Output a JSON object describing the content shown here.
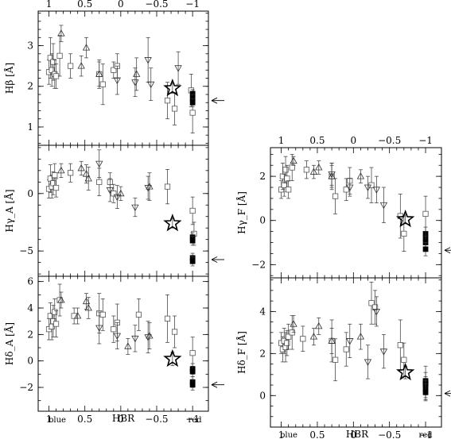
{
  "figure": {
    "xlabel": "HBR",
    "x_end_labels": {
      "left": "blue",
      "right": "red"
    },
    "top_ticks": [
      "1",
      "0.5",
      "0",
      "−0.5",
      "−1"
    ],
    "bottom_ticks": [
      "1",
      "0.5",
      "0",
      "−0.5",
      "−1"
    ]
  },
  "chart_data": [
    {
      "type": "scatter",
      "panel": "Hbeta",
      "ylabel": "Hβ [Å]",
      "xlim": [
        1.15,
        -1.22
      ],
      "ylim": [
        0.55,
        3.85
      ],
      "yticks": [
        1,
        2,
        3
      ],
      "arrow_y": 1.65,
      "squares": [
        {
          "x": 1.0,
          "y": 2.35,
          "err": 0.3
        },
        {
          "x": 0.98,
          "y": 2.7,
          "err": 0.5
        },
        {
          "x": 0.96,
          "y": 2.4,
          "err": 0.4
        },
        {
          "x": 0.94,
          "y": 2.6,
          "err": 0.45
        },
        {
          "x": 0.92,
          "y": 2.3,
          "err": 0.35
        },
        {
          "x": 0.9,
          "y": 2.25,
          "err": 0.3
        },
        {
          "x": 0.85,
          "y": 2.75,
          "err": 0.5
        },
        {
          "x": 0.7,
          "y": 2.5,
          "err": 0.3
        },
        {
          "x": 0.3,
          "y": 2.3,
          "err": 0.3
        },
        {
          "x": 0.25,
          "y": 2.05,
          "err": 0.5
        },
        {
          "x": 0.1,
          "y": 2.4,
          "err": 0.2
        },
        {
          "x": 0.05,
          "y": 2.5,
          "err": 0.3
        },
        {
          "x": -0.65,
          "y": 1.65,
          "err": 0.45
        },
        {
          "x": -0.75,
          "y": 1.45,
          "err": 0.4
        },
        {
          "x": -1.0,
          "y": 1.35,
          "err": 0.5
        },
        {
          "x": -0.98,
          "y": 1.9,
          "err": 0.4
        }
      ],
      "triangles_up": [
        {
          "x": 0.83,
          "y": 3.3,
          "err": 0.2
        },
        {
          "x": 0.55,
          "y": 2.5,
          "err": 0.25
        },
        {
          "x": 0.48,
          "y": 2.95,
          "err": 0.25
        },
        {
          "x": 0.3,
          "y": 2.3,
          "err": 0.35
        },
        {
          "x": -0.22,
          "y": 2.3,
          "err": 0.4
        }
      ],
      "triangles_down": [
        {
          "x": 0.05,
          "y": 2.15,
          "err": 0.35
        },
        {
          "x": -0.2,
          "y": 2.1,
          "err": 0.35
        },
        {
          "x": -0.38,
          "y": 2.65,
          "err": 0.55
        },
        {
          "x": -0.42,
          "y": 2.05,
          "err": 0.4
        },
        {
          "x": -0.8,
          "y": 2.45,
          "err": 0.4
        }
      ],
      "stars": [
        {
          "x": -0.72,
          "y": 1.95,
          "err": 0.12
        }
      ],
      "filled": [
        {
          "x": -1.0,
          "y": 1.82,
          "err": 0.1
        },
        {
          "x": -1.0,
          "y": 1.7,
          "err": 0.1
        },
        {
          "x": -1.0,
          "y": 1.6,
          "err": 0.1
        }
      ]
    },
    {
      "type": "scatter",
      "panel": "HgammaA",
      "ylabel": "Hγ_A [Å]",
      "xlim": [
        1.15,
        -1.22
      ],
      "ylim": [
        -7.2,
        4.2
      ],
      "yticks": [
        -5,
        0
      ],
      "arrow_y": -5.75,
      "squares": [
        {
          "x": 1.0,
          "y": 0.4,
          "err": 0.8
        },
        {
          "x": 0.98,
          "y": 1.3,
          "err": 1.2
        },
        {
          "x": 0.96,
          "y": 0.6,
          "err": 1.0
        },
        {
          "x": 0.94,
          "y": 0.9,
          "err": 1.0
        },
        {
          "x": 0.92,
          "y": 1.6,
          "err": 1.0
        },
        {
          "x": 0.9,
          "y": 0.5,
          "err": 0.8
        },
        {
          "x": 0.7,
          "y": 1.8,
          "err": 0.8
        },
        {
          "x": 0.3,
          "y": 1.0,
          "err": 1.2
        },
        {
          "x": 0.15,
          "y": 1.0,
          "err": 0.8
        },
        {
          "x": 0.1,
          "y": 0.0,
          "err": 0.8
        },
        {
          "x": -0.65,
          "y": 0.6,
          "err": 1.5
        },
        {
          "x": -1.0,
          "y": -1.5,
          "err": 1.2
        },
        {
          "x": -1.02,
          "y": -3.5,
          "err": 1.0
        }
      ],
      "triangles_up": [
        {
          "x": 0.83,
          "y": 2.0,
          "err": 0.6
        },
        {
          "x": 0.55,
          "y": 2.2,
          "err": 0.6
        },
        {
          "x": 0.48,
          "y": 1.7,
          "err": 0.8
        },
        {
          "x": 0.45,
          "y": 1.3,
          "err": 1.0
        },
        {
          "x": 0.0,
          "y": 0.0,
          "err": 0.6
        },
        {
          "x": -0.4,
          "y": 0.6,
          "err": 1.2
        }
      ],
      "triangles_down": [
        {
          "x": 0.3,
          "y": 2.6,
          "err": 1.2
        },
        {
          "x": 0.15,
          "y": 0.3,
          "err": 1.0
        },
        {
          "x": 0.05,
          "y": -0.3,
          "err": 1.0
        },
        {
          "x": -0.2,
          "y": -1.2,
          "err": 0.8
        },
        {
          "x": -0.38,
          "y": 0.5,
          "err": 1.0
        }
      ],
      "stars": [
        {
          "x": -0.72,
          "y": -2.6,
          "err": 0.4
        }
      ],
      "filled": [
        {
          "x": -1.0,
          "y": -3.8,
          "err": 0.4
        },
        {
          "x": -1.0,
          "y": -4.1,
          "err": 0.4
        },
        {
          "x": -1.0,
          "y": -5.6,
          "err": 0.4
        },
        {
          "x": -1.0,
          "y": -5.9,
          "err": 0.4
        }
      ]
    },
    {
      "type": "scatter",
      "panel": "HdeltaA",
      "ylabel": "Hδ_A [Å]",
      "xlim": [
        1.15,
        -1.22
      ],
      "ylim": [
        -3.8,
        6.4
      ],
      "yticks": [
        -2,
        0,
        2,
        4,
        6
      ],
      "arrow_y": -1.8,
      "squares": [
        {
          "x": 1.0,
          "y": 2.4,
          "err": 0.8
        },
        {
          "x": 0.98,
          "y": 3.4,
          "err": 1.0
        },
        {
          "x": 0.96,
          "y": 2.6,
          "err": 1.0
        },
        {
          "x": 0.94,
          "y": 3.0,
          "err": 1.2
        },
        {
          "x": 0.92,
          "y": 3.7,
          "err": 1.0
        },
        {
          "x": 0.9,
          "y": 2.8,
          "err": 1.0
        },
        {
          "x": 0.85,
          "y": 4.6,
          "err": 1.2
        },
        {
          "x": 0.65,
          "y": 3.4,
          "err": 0.6
        },
        {
          "x": 0.3,
          "y": 3.6,
          "err": 1.5
        },
        {
          "x": 0.25,
          "y": 3.5,
          "err": 1.2
        },
        {
          "x": 0.1,
          "y": 2.4,
          "err": 1.0
        },
        {
          "x": 0.05,
          "y": 2.9,
          "err": 1.4
        },
        {
          "x": -0.25,
          "y": 3.5,
          "err": 1.2
        },
        {
          "x": -0.65,
          "y": 3.2,
          "err": 1.8
        },
        {
          "x": -0.75,
          "y": 2.2,
          "err": 1.2
        },
        {
          "x": -1.0,
          "y": 0.6,
          "err": 1.2
        }
      ],
      "triangles_up": [
        {
          "x": 0.83,
          "y": 4.6,
          "err": 0.6
        },
        {
          "x": 0.6,
          "y": 3.4,
          "err": 0.6
        },
        {
          "x": 0.48,
          "y": 4.5,
          "err": 0.6
        },
        {
          "x": 0.45,
          "y": 4.0,
          "err": 0.8
        },
        {
          "x": -0.1,
          "y": 1.1,
          "err": 0.6
        },
        {
          "x": -0.4,
          "y": 1.9,
          "err": 1.0
        }
      ],
      "triangles_down": [
        {
          "x": 0.3,
          "y": 2.5,
          "err": 1.2
        },
        {
          "x": 0.05,
          "y": 1.9,
          "err": 1.0
        },
        {
          "x": -0.2,
          "y": 1.7,
          "err": 1.0
        },
        {
          "x": -0.38,
          "y": 1.8,
          "err": 1.2
        }
      ],
      "stars": [
        {
          "x": -0.72,
          "y": 0.15,
          "err": 0.5
        }
      ],
      "filled": [
        {
          "x": -1.0,
          "y": -0.6,
          "err": 0.4
        },
        {
          "x": -1.0,
          "y": -0.8,
          "err": 0.4
        },
        {
          "x": -1.0,
          "y": -1.6,
          "err": 0.4
        },
        {
          "x": -1.0,
          "y": -1.8,
          "err": 0.4
        }
      ]
    },
    {
      "type": "scatter",
      "panel": "HgammaF",
      "ylabel": "Hγ_F [Å]",
      "xlim": [
        1.15,
        -1.22
      ],
      "ylim": [
        -2.6,
        3.3
      ],
      "yticks": [
        -2,
        0,
        2
      ],
      "arrow_y": -1.35,
      "squares": [
        {
          "x": 1.0,
          "y": 1.4,
          "err": 0.4
        },
        {
          "x": 0.98,
          "y": 2.0,
          "err": 0.6
        },
        {
          "x": 0.96,
          "y": 1.6,
          "err": 0.5
        },
        {
          "x": 0.94,
          "y": 2.3,
          "err": 0.6
        },
        {
          "x": 0.92,
          "y": 1.9,
          "err": 0.6
        },
        {
          "x": 0.9,
          "y": 1.4,
          "err": 0.4
        },
        {
          "x": 0.85,
          "y": 2.4,
          "err": 0.6
        },
        {
          "x": 0.65,
          "y": 2.3,
          "err": 0.4
        },
        {
          "x": 0.3,
          "y": 2.0,
          "err": 0.6
        },
        {
          "x": 0.25,
          "y": 1.1,
          "err": 0.8
        },
        {
          "x": 0.1,
          "y": 1.4,
          "err": 0.5
        },
        {
          "x": 0.05,
          "y": 1.8,
          "err": 0.6
        },
        {
          "x": -0.25,
          "y": 1.6,
          "err": 0.8
        },
        {
          "x": -0.65,
          "y": 0.2,
          "err": 1.0
        },
        {
          "x": -0.7,
          "y": -0.6,
          "err": 0.8
        },
        {
          "x": -1.0,
          "y": 0.3,
          "err": 0.8
        }
      ],
      "triangles_up": [
        {
          "x": 0.83,
          "y": 2.7,
          "err": 0.2
        },
        {
          "x": 0.55,
          "y": 2.2,
          "err": 0.3
        },
        {
          "x": 0.48,
          "y": 2.4,
          "err": 0.3
        },
        {
          "x": 0.3,
          "y": 2.0,
          "err": 0.5
        },
        {
          "x": -0.1,
          "y": 2.0,
          "err": 0.3
        }
      ],
      "triangles_down": [
        {
          "x": 0.05,
          "y": 1.5,
          "err": 0.4
        },
        {
          "x": -0.2,
          "y": 1.5,
          "err": 0.5
        },
        {
          "x": -0.32,
          "y": 1.4,
          "err": 0.6
        },
        {
          "x": -0.42,
          "y": 0.7,
          "err": 0.8
        },
        {
          "x": 0.3,
          "y": 2.1,
          "err": 0.5
        }
      ],
      "stars": [
        {
          "x": -0.72,
          "y": 0.05,
          "err": 0.2
        }
      ],
      "filled": [
        {
          "x": -1.0,
          "y": -0.6,
          "err": 0.3
        },
        {
          "x": -1.0,
          "y": -0.8,
          "err": 0.3
        },
        {
          "x": -1.0,
          "y": -1.0,
          "err": 0.3
        },
        {
          "x": -1.0,
          "y": -1.3,
          "err": 0.3
        }
      ]
    },
    {
      "type": "scatter",
      "panel": "HdeltaF",
      "ylabel": "Hδ_F [Å]",
      "xlim": [
        1.15,
        -1.22
      ],
      "ylim": [
        -1.5,
        5.6
      ],
      "yticks": [
        0,
        2,
        4
      ],
      "arrow_y": 0.1,
      "squares": [
        {
          "x": 1.0,
          "y": 2.5,
          "err": 0.5
        },
        {
          "x": 0.98,
          "y": 2.2,
          "err": 0.6
        },
        {
          "x": 0.96,
          "y": 2.6,
          "err": 0.6
        },
        {
          "x": 0.94,
          "y": 2.3,
          "err": 0.7
        },
        {
          "x": 0.92,
          "y": 2.5,
          "err": 0.6
        },
        {
          "x": 0.9,
          "y": 2.8,
          "err": 0.6
        },
        {
          "x": 0.85,
          "y": 3.0,
          "err": 0.8
        },
        {
          "x": 0.7,
          "y": 2.7,
          "err": 0.6
        },
        {
          "x": 0.3,
          "y": 2.6,
          "err": 1.0
        },
        {
          "x": 0.25,
          "y": 1.7,
          "err": 1.0
        },
        {
          "x": 0.1,
          "y": 2.2,
          "err": 0.8
        },
        {
          "x": -0.25,
          "y": 4.4,
          "err": 1.0
        },
        {
          "x": -0.3,
          "y": 4.2,
          "err": 0.8
        },
        {
          "x": -0.65,
          "y": 2.4,
          "err": 1.2
        },
        {
          "x": -0.7,
          "y": 1.7,
          "err": 0.8
        },
        {
          "x": -1.0,
          "y": 0.6,
          "err": 0.8
        }
      ],
      "triangles_up": [
        {
          "x": 0.83,
          "y": 3.4,
          "err": 0.4
        },
        {
          "x": 0.55,
          "y": 2.8,
          "err": 0.4
        },
        {
          "x": 0.48,
          "y": 3.3,
          "err": 0.4
        },
        {
          "x": 0.3,
          "y": 2.6,
          "err": 0.6
        },
        {
          "x": -0.1,
          "y": 2.8,
          "err": 0.6
        }
      ],
      "triangles_down": [
        {
          "x": 0.05,
          "y": 2.6,
          "err": 0.8
        },
        {
          "x": -0.2,
          "y": 1.6,
          "err": 0.8
        },
        {
          "x": -0.32,
          "y": 4.0,
          "err": 0.7
        },
        {
          "x": -0.42,
          "y": 2.1,
          "err": 0.8
        }
      ],
      "stars": [
        {
          "x": -0.72,
          "y": 1.1,
          "err": 0.3
        }
      ],
      "filled": [
        {
          "x": -1.0,
          "y": 0.7,
          "err": 0.4
        },
        {
          "x": -1.0,
          "y": 0.5,
          "err": 0.4
        },
        {
          "x": -1.0,
          "y": 0.3,
          "err": 0.4
        },
        {
          "x": -1.0,
          "y": 0.15,
          "err": 0.4
        }
      ]
    }
  ]
}
